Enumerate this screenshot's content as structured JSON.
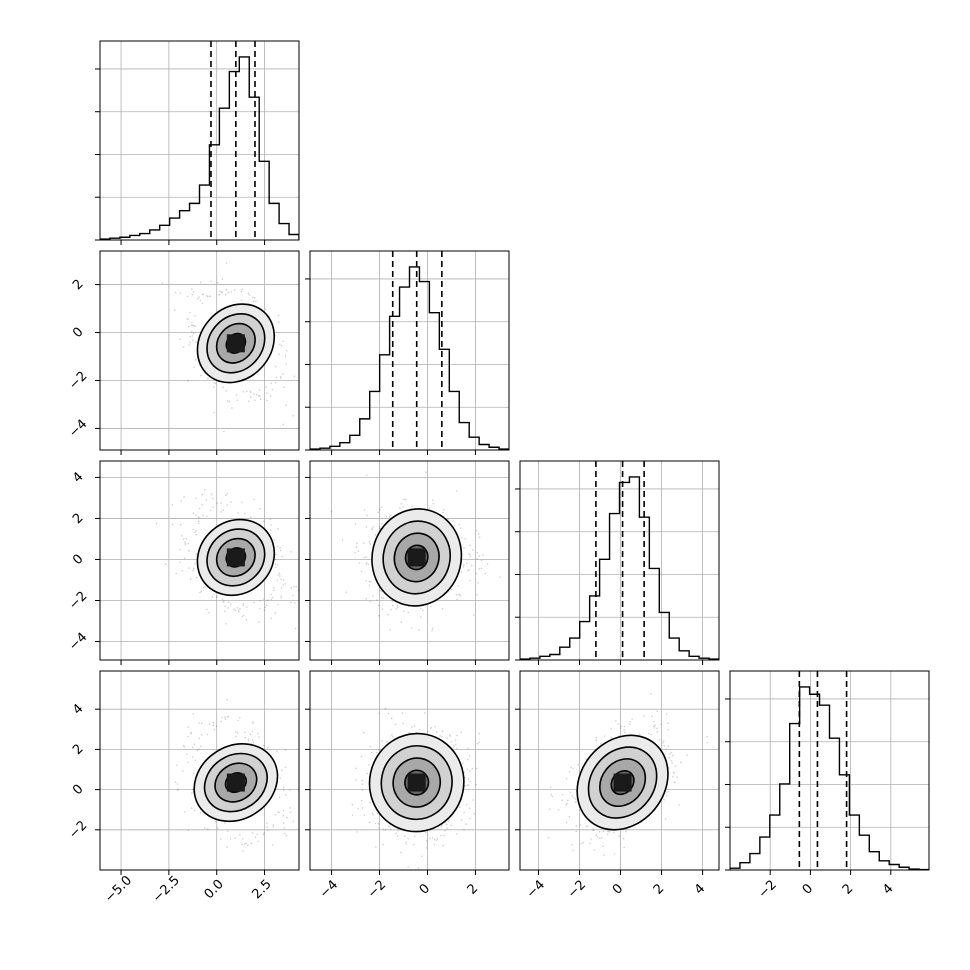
{
  "chart_data": {
    "type": "corner",
    "ndim": 4,
    "grid": true,
    "quantile_lines": "dashed",
    "axes": [
      {
        "index": 0,
        "range": [
          -6.1,
          4.3
        ],
        "ticks": [
          -5.0,
          -2.5,
          0.0,
          2.5
        ],
        "tick_labels": [
          "−5.0",
          "−2.5",
          "0.0",
          "2.5"
        ],
        "quantiles": [
          -0.3,
          1.0,
          2.0
        ],
        "center": 1.0,
        "sigma": 1.05,
        "hist_x": [
          -6.1,
          -5.58,
          -5.06,
          -4.54,
          -4.02,
          -3.5,
          -2.98,
          -2.46,
          -1.94,
          -1.42,
          -0.9,
          -0.38,
          0.14,
          0.66,
          1.18,
          1.7,
          2.22,
          2.74,
          3.26,
          3.78,
          4.3
        ],
        "hist_values": [
          0.005,
          0.01,
          0.015,
          0.025,
          0.035,
          0.055,
          0.08,
          0.12,
          0.16,
          0.2,
          0.3,
          0.52,
          0.72,
          0.92,
          1.0,
          0.78,
          0.43,
          0.2,
          0.09,
          0.03
        ]
      },
      {
        "index": 1,
        "range": [
          -4.9,
          3.4
        ],
        "ticks": [
          -4,
          -2,
          0,
          2
        ],
        "tick_labels": [
          "−4",
          "−2",
          "0",
          "2"
        ],
        "quantiles": [
          -1.45,
          -0.45,
          0.6
        ],
        "center": -0.45,
        "sigma": 1.0,
        "hist_x": [
          -4.9,
          -4.485,
          -4.07,
          -3.655,
          -3.24,
          -2.825,
          -2.41,
          -1.995,
          -1.58,
          -1.165,
          -0.75,
          -0.335,
          0.08,
          0.495,
          0.91,
          1.325,
          1.74,
          2.155,
          2.57,
          2.985,
          3.4
        ],
        "hist_values": [
          0.005,
          0.01,
          0.02,
          0.04,
          0.08,
          0.17,
          0.32,
          0.52,
          0.73,
          0.89,
          1.0,
          0.92,
          0.75,
          0.55,
          0.32,
          0.15,
          0.07,
          0.03,
          0.015,
          0.005
        ]
      },
      {
        "index": 2,
        "range": [
          -4.9,
          4.8
        ],
        "ticks": [
          -4,
          -2,
          0,
          2,
          4
        ],
        "tick_labels": [
          "−4",
          "−2",
          "0",
          "2",
          "4"
        ],
        "quantiles": [
          -1.2,
          0.1,
          1.15
        ],
        "center": 0.1,
        "sigma": 1.1,
        "hist_x": [
          -4.9,
          -4.415,
          -3.93,
          -3.445,
          -2.96,
          -2.475,
          -1.99,
          -1.505,
          -1.02,
          -0.535,
          -0.05,
          0.435,
          0.92,
          1.405,
          1.89,
          2.375,
          2.86,
          3.345,
          3.83,
          4.315,
          4.8
        ],
        "hist_values": [
          0.005,
          0.01,
          0.02,
          0.03,
          0.07,
          0.12,
          0.21,
          0.35,
          0.55,
          0.8,
          0.97,
          1.0,
          0.78,
          0.5,
          0.26,
          0.12,
          0.05,
          0.02,
          0.01,
          0.005
        ]
      },
      {
        "index": 3,
        "range": [
          -4.0,
          5.9
        ],
        "ticks": [
          -2,
          0,
          2,
          4
        ],
        "tick_labels": [
          "−2",
          "0",
          "2",
          "4"
        ],
        "quantiles": [
          -0.55,
          0.35,
          1.8
        ],
        "center": 0.35,
        "sigma": 1.2,
        "hist_x": [
          -4.0,
          -3.505,
          -3.01,
          -2.515,
          -2.02,
          -1.525,
          -1.03,
          -0.535,
          -0.04,
          0.455,
          0.95,
          1.445,
          1.94,
          2.435,
          2.93,
          3.425,
          3.92,
          4.415,
          4.91,
          5.405,
          5.9
        ],
        "hist_values": [
          0.01,
          0.04,
          0.09,
          0.18,
          0.3,
          0.47,
          0.8,
          1.0,
          0.96,
          0.9,
          0.72,
          0.52,
          0.3,
          0.19,
          0.1,
          0.05,
          0.03,
          0.015,
          0.005,
          0.002
        ]
      }
    ],
    "pairs": [
      {
        "x_axis": 0,
        "y_axis": 1,
        "rho": -0.38
      },
      {
        "x_axis": 0,
        "y_axis": 2,
        "rho": -0.34
      },
      {
        "x_axis": 1,
        "y_axis": 2,
        "rho": 0.05
      },
      {
        "x_axis": 0,
        "y_axis": 3,
        "rho": -0.3
      },
      {
        "x_axis": 1,
        "y_axis": 3,
        "rho": 0.08
      },
      {
        "x_axis": 2,
        "y_axis": 3,
        "rho": 0.42
      }
    ],
    "contour_levels_sigma": [
      0.5,
      1.0,
      1.5,
      2.0
    ],
    "colors": {
      "line": "#000000",
      "grid": "#b0b0b0",
      "points": "#555555",
      "density_dark": "#000000",
      "density_light": "#ffffff"
    }
  }
}
